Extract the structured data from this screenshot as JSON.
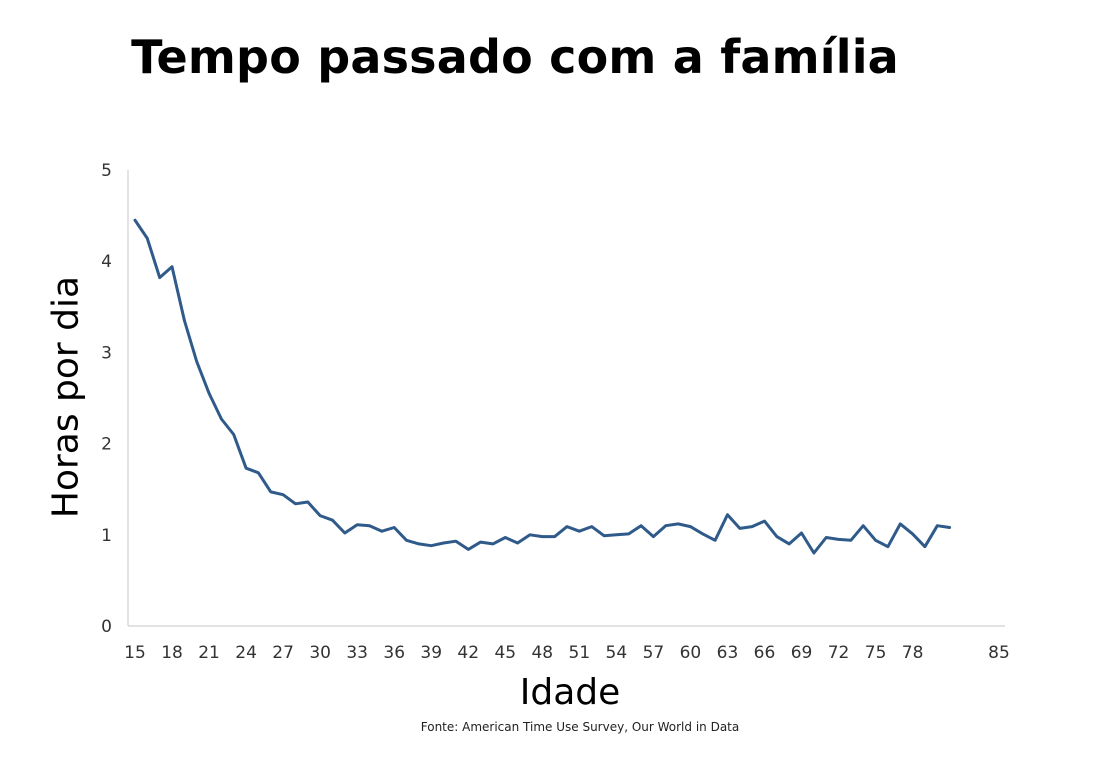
{
  "chart_data": {
    "type": "line",
    "title": "Tempo passado com a família",
    "xlabel": "Idade",
    "ylabel": "Horas por dia",
    "source": "Fonte: American Time Use Survey, Our World in Data",
    "ylim": [
      0,
      5
    ],
    "yticks": [
      0,
      1,
      2,
      3,
      4,
      5
    ],
    "xticks": [
      15,
      18,
      21,
      24,
      27,
      30,
      33,
      36,
      39,
      42,
      45,
      48,
      51,
      54,
      57,
      60,
      63,
      66,
      69,
      72,
      75,
      78,
      85
    ],
    "grid": false,
    "line_color": "#2f5a8a",
    "x": [
      15,
      16,
      17,
      18,
      19,
      20,
      21,
      22,
      23,
      24,
      25,
      26,
      27,
      28,
      29,
      30,
      31,
      32,
      33,
      34,
      35,
      36,
      37,
      38,
      39,
      40,
      41,
      42,
      43,
      44,
      45,
      46,
      47,
      48,
      49,
      50,
      51,
      52,
      53,
      54,
      55,
      56,
      57,
      58,
      59,
      60,
      61,
      62,
      63,
      64,
      65,
      66,
      67,
      68,
      69,
      70,
      71,
      72,
      73,
      74,
      75,
      76,
      77,
      78,
      79,
      80,
      81
    ],
    "values": [
      4.45,
      4.25,
      3.82,
      3.94,
      3.35,
      2.9,
      2.55,
      2.27,
      2.1,
      1.73,
      1.68,
      1.47,
      1.44,
      1.34,
      1.36,
      1.21,
      1.16,
      1.02,
      1.11,
      1.1,
      1.04,
      1.08,
      0.94,
      0.9,
      0.88,
      0.91,
      0.93,
      0.84,
      0.92,
      0.9,
      0.97,
      0.91,
      1.0,
      0.98,
      0.98,
      1.09,
      1.04,
      1.09,
      0.99,
      1.0,
      1.01,
      1.1,
      0.98,
      1.1,
      1.12,
      1.09,
      1.01,
      0.94,
      1.22,
      1.07,
      1.09,
      1.15,
      0.98,
      0.9,
      1.02,
      0.8,
      0.97,
      0.95,
      0.94,
      1.1,
      0.94,
      0.87,
      1.12,
      1.01,
      0.87,
      1.1,
      1.08
    ]
  }
}
